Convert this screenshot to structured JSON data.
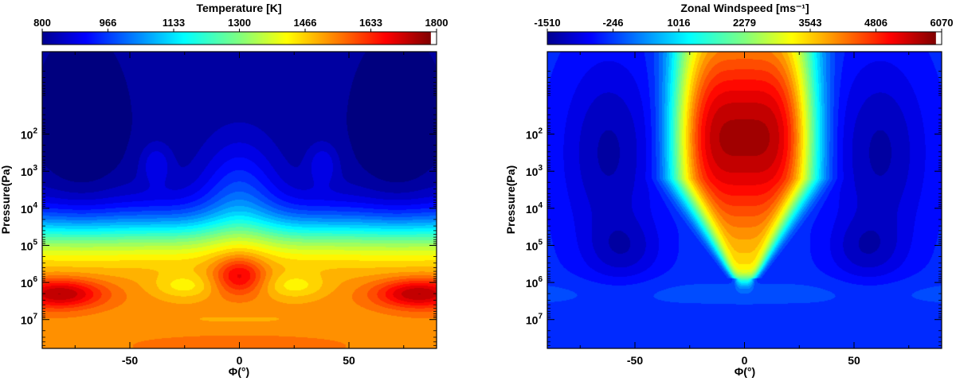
{
  "chart_data": [
    {
      "type": "heatmap",
      "title": "Temperature [K]",
      "colorbar": {
        "ticks": [
          "800",
          "966",
          "1133",
          "1300",
          "1466",
          "1633",
          "1800"
        ],
        "range": [
          800,
          1800
        ],
        "colormap": "jet"
      },
      "xlabel": "Φ(°)",
      "ylabel": "Pressure(Pa)",
      "xlim": [
        -90,
        90
      ],
      "ylim": [
        60000000,
        0.6
      ],
      "y_scale": "log",
      "xticks": [
        "-50",
        "0",
        "50"
      ],
      "yticks": [
        {
          "base": "10",
          "exp": "2"
        },
        {
          "base": "10",
          "exp": "3"
        },
        {
          "base": "10",
          "exp": "4"
        },
        {
          "base": "10",
          "exp": "5"
        },
        {
          "base": "10",
          "exp": "6"
        },
        {
          "base": "10",
          "exp": "7"
        }
      ],
      "features": [
        {
          "name": "hot band",
          "lat": [
            -90,
            90
          ],
          "pressure": 2000000,
          "value": 1580
        },
        {
          "name": "hot spot",
          "lat": 0,
          "pressure": 600000,
          "value": 1650
        },
        {
          "name": "hot lobes",
          "lat": [
            -80,
            80
          ],
          "pressure": 2000000,
          "value": 1780
        },
        {
          "name": "cool upper atmosphere",
          "lat": [
            -90,
            90
          ],
          "pressure": 10,
          "value": 830
        }
      ]
    },
    {
      "type": "heatmap",
      "title": "Zonal Windspeed [ms⁻¹]",
      "colorbar": {
        "ticks": [
          "-1510",
          "-246",
          "1016",
          "2279",
          "3543",
          "4806",
          "6070"
        ],
        "range": [
          -1510,
          6070
        ],
        "colormap": "jet"
      },
      "xlabel": "Φ(°)",
      "ylabel": "Pressure(Pa)",
      "xlim": [
        -90,
        90
      ],
      "ylim": [
        60000000,
        0.6
      ],
      "y_scale": "log",
      "xticks": [
        "-50",
        "0",
        "50"
      ],
      "yticks": [
        {
          "base": "10",
          "exp": "2"
        },
        {
          "base": "10",
          "exp": "3"
        },
        {
          "base": "10",
          "exp": "4"
        },
        {
          "base": "10",
          "exp": "5"
        },
        {
          "base": "10",
          "exp": "6"
        },
        {
          "base": "10",
          "exp": "7"
        }
      ],
      "features": [
        {
          "name": "equatorial superrotating jet",
          "lat": [
            -30,
            30
          ],
          "pressure": [
            0.6,
            1000000
          ],
          "peak_value": 6070
        },
        {
          "name": "high-latitude retrograde flow",
          "lat": [
            -70,
            70
          ],
          "value": -1510
        }
      ]
    }
  ]
}
